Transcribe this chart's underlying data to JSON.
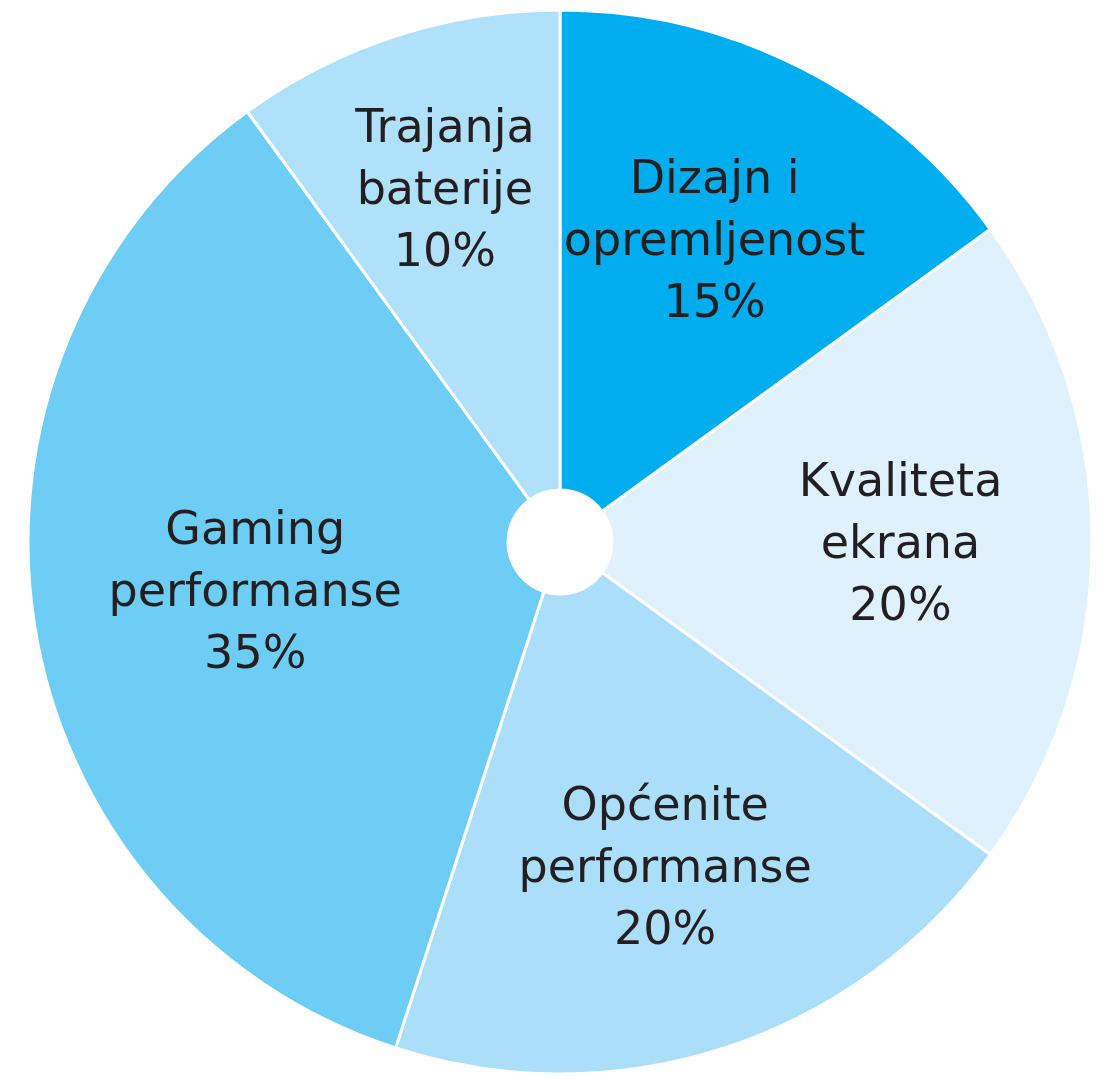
{
  "chart_data": {
    "type": "pie",
    "categories": [
      "Dizajn i opremljenost",
      "Kvaliteta ekrana",
      "Općenite performanse",
      "Gaming performanse",
      "Trajanja baterije"
    ],
    "values": [
      15,
      20,
      20,
      35,
      10
    ],
    "value_labels": [
      "15%",
      "20%",
      "20%",
      "35%",
      "10%"
    ],
    "colors": [
      "#00aeef",
      "#dff1fc",
      "#abdff9",
      "#6dcdf5",
      "#b0e1fa"
    ]
  }
}
